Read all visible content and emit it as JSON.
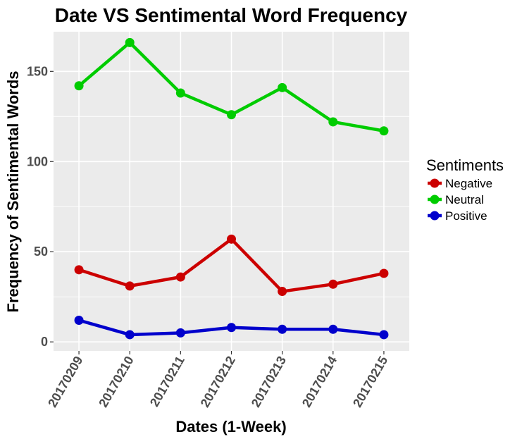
{
  "chart_data": {
    "type": "line",
    "title": "Date VS Sentimental Word Frequency",
    "xlabel": "Dates (1-Week)",
    "ylabel": "Frequency of Sentimental Words",
    "categories": [
      "20170209",
      "20170210",
      "20170211",
      "20170212",
      "20170213",
      "20170214",
      "20170215"
    ],
    "y_ticks": [
      "0",
      "50",
      "100",
      "150"
    ],
    "ylim": [
      -5,
      172
    ],
    "grid": true,
    "background": "#ebebeb",
    "legend": {
      "title": "Sentiments",
      "placement": "right"
    },
    "series": [
      {
        "name": "Negative",
        "color": "#cc0000",
        "values": [
          40,
          31,
          36,
          57,
          28,
          32,
          38
        ]
      },
      {
        "name": "Neutral",
        "color": "#00cc00",
        "values": [
          142,
          166,
          138,
          126,
          141,
          122,
          117
        ]
      },
      {
        "name": "Positive",
        "color": "#0000cc",
        "values": [
          12,
          4,
          5,
          8,
          7,
          7,
          4
        ]
      }
    ]
  }
}
